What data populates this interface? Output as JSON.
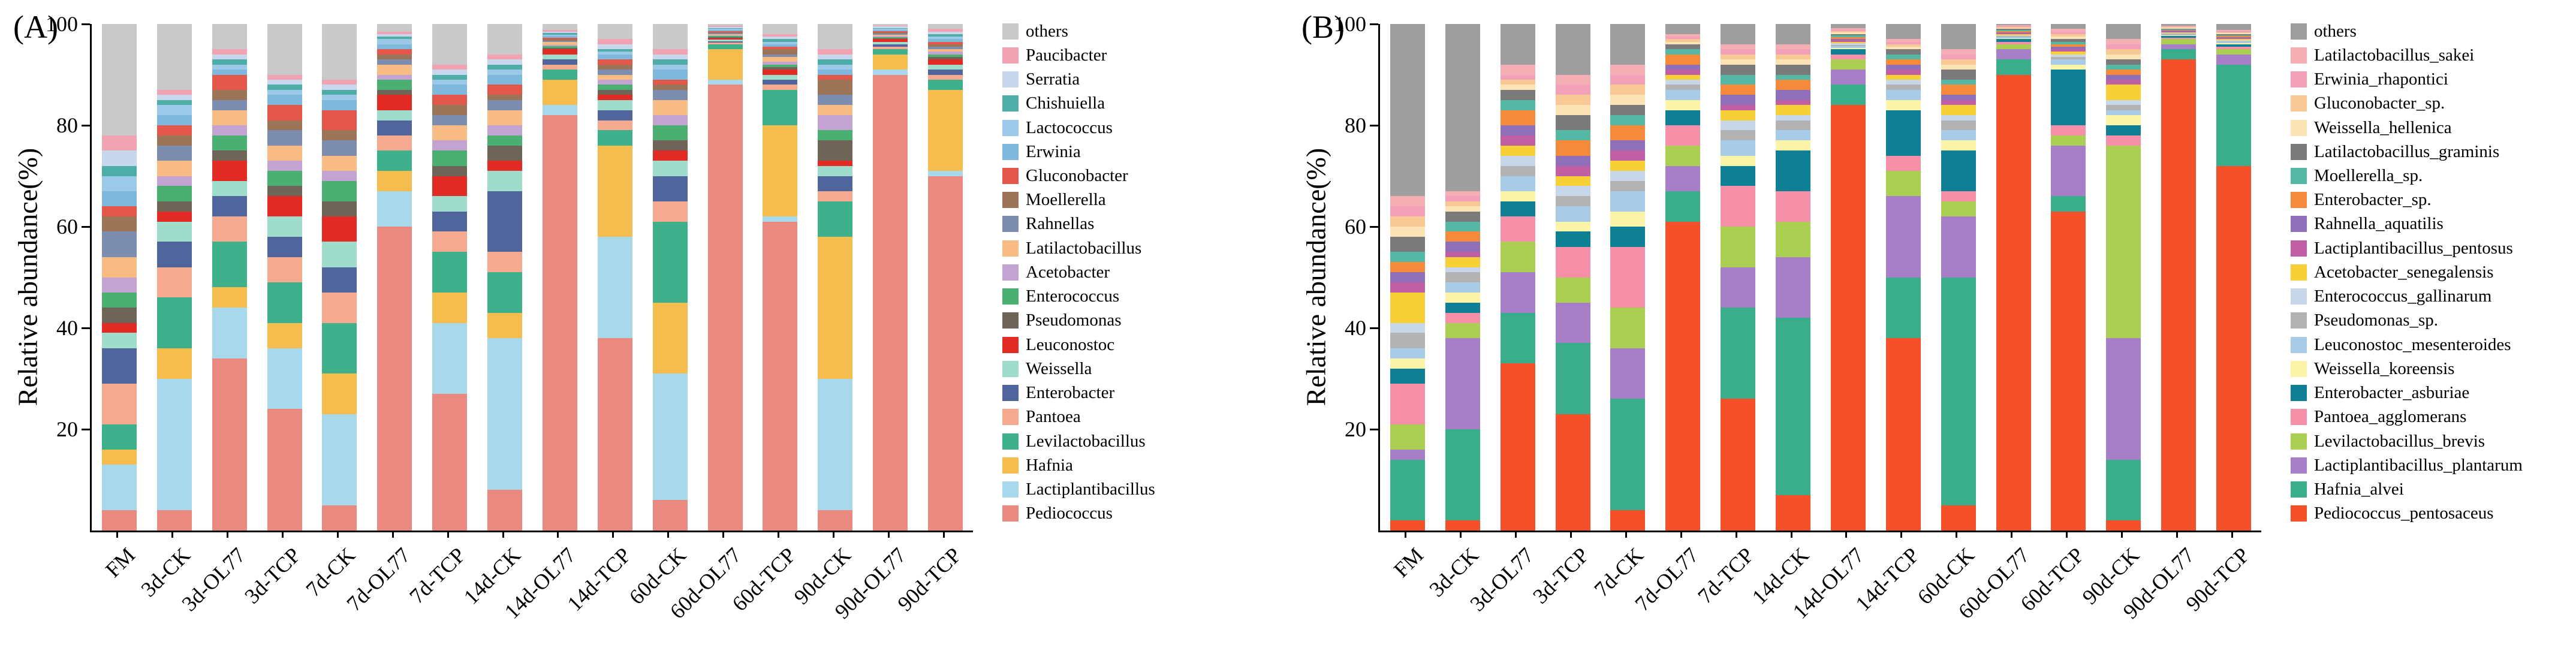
{
  "figure": {
    "panels": [
      {
        "label": "(A)"
      },
      {
        "label": "(B)"
      }
    ]
  },
  "chart_data": [
    {
      "type": "bar",
      "stacked": true,
      "panel_label": "(A)",
      "title": "",
      "xlabel": "",
      "ylabel": "Relative abundance(%)",
      "ylim": [
        0,
        100
      ],
      "yticks": [
        20,
        40,
        60,
        80,
        100
      ],
      "grid": false,
      "legend_position": "right",
      "legend_order": "top-to-bottom is reverse of series stacking order",
      "categories": [
        "FM",
        "3d-CK",
        "3d-OL77",
        "3d-TCP",
        "7d-CK",
        "7d-OL77",
        "7d-TCP",
        "14d-CK",
        "14d-OL77",
        "14d-TCP",
        "60d-CK",
        "60d-OL77",
        "60d-TCP",
        "90d-CK",
        "90d-OL77",
        "90d-TCP"
      ],
      "series": [
        {
          "name": "Pediococcus",
          "color": "#E98980",
          "values": [
            4,
            4,
            34,
            24,
            5,
            60,
            27,
            8,
            82,
            38,
            6,
            88,
            61,
            4,
            90,
            70
          ]
        },
        {
          "name": "Lactiplantibacillus",
          "color": "#A7D8EC",
          "values": [
            9,
            26,
            10,
            12,
            18,
            7,
            14,
            30,
            2,
            20,
            25,
            1,
            1,
            26,
            1,
            1
          ]
        },
        {
          "name": "Hafnia",
          "color": "#F5BD4E",
          "values": [
            3,
            6,
            4,
            5,
            8,
            4,
            6,
            5,
            5,
            18,
            14,
            6,
            18,
            28,
            3,
            16
          ]
        },
        {
          "name": "Levilactobacillus",
          "color": "#3FB08C",
          "values": [
            5,
            10,
            9,
            8,
            10,
            4,
            8,
            8,
            2,
            3,
            16,
            1,
            7,
            7,
            1,
            2
          ]
        },
        {
          "name": "Pantoea",
          "color": "#F5A98F",
          "values": [
            8,
            6,
            5,
            5,
            6,
            3,
            4,
            4,
            1,
            2,
            4,
            0.3,
            1,
            2,
            0.5,
            1
          ]
        },
        {
          "name": "Enterobacter",
          "color": "#4F659B",
          "values": [
            7,
            5,
            4,
            4,
            5,
            3,
            4,
            12,
            1,
            2,
            5,
            0.3,
            1,
            3,
            0.5,
            1
          ]
        },
        {
          "name": "Weissella",
          "color": "#9FDCCB",
          "values": [
            3,
            4,
            3,
            4,
            5,
            2,
            3,
            4,
            1,
            2,
            3,
            0.3,
            1,
            2,
            0.5,
            1
          ]
        },
        {
          "name": "Leuconostoc",
          "color": "#E22B24",
          "values": [
            2,
            2,
            4,
            4,
            5,
            3,
            4,
            2,
            1,
            1,
            2,
            0.3,
            1,
            1,
            0.5,
            1
          ]
        },
        {
          "name": "Pseudomonas",
          "color": "#6E6458",
          "values": [
            3,
            2,
            2,
            2,
            3,
            1,
            2,
            3,
            0.3,
            1,
            2,
            0.2,
            0.5,
            4,
            0.2,
            0.5
          ]
        },
        {
          "name": "Enterococcus",
          "color": "#4CAF72",
          "values": [
            3,
            3,
            3,
            3,
            4,
            2,
            3,
            2,
            0.3,
            1,
            3,
            0.2,
            0.5,
            2,
            0.2,
            0.5
          ]
        },
        {
          "name": "Acetobacter",
          "color": "#C2A3D1",
          "values": [
            3,
            2,
            2,
            2,
            2,
            1,
            2,
            2,
            0.3,
            1,
            2,
            0.2,
            0.5,
            3,
            0.2,
            0.5
          ]
        },
        {
          "name": "Latilactobacillus",
          "color": "#F7BB83",
          "values": [
            4,
            3,
            3,
            3,
            3,
            2,
            3,
            3,
            0.5,
            1,
            3,
            0.2,
            1,
            2,
            0.3,
            0.5
          ]
        },
        {
          "name": "Rahnellas",
          "color": "#7C8DB0",
          "values": [
            5,
            3,
            2,
            3,
            3,
            1,
            2,
            2,
            0.3,
            1,
            2,
            0.2,
            0.5,
            2,
            0.2,
            0.5
          ]
        },
        {
          "name": "Moellerella",
          "color": "#9C7558",
          "values": [
            3,
            2,
            2,
            2,
            2,
            1,
            2,
            1,
            0.3,
            1,
            1,
            0.2,
            1,
            3,
            0.2,
            0.5
          ]
        },
        {
          "name": "Gluconobacter",
          "color": "#E4574B",
          "values": [
            2,
            2,
            3,
            3,
            4,
            1,
            2,
            2,
            0.3,
            1,
            1,
            0.2,
            0.5,
            1,
            0.3,
            0.5
          ]
        },
        {
          "name": "Erwinia",
          "color": "#7FB8DD",
          "values": [
            3,
            2,
            1,
            2,
            2,
            1,
            2,
            2,
            0.3,
            1,
            2,
            0.2,
            0.5,
            1,
            0.2,
            0.5
          ]
        },
        {
          "name": "Lactococcus",
          "color": "#9DC9E8",
          "values": [
            3,
            2,
            1,
            1,
            1,
            1,
            1,
            1,
            0.3,
            0.5,
            1,
            0.2,
            0.5,
            1,
            0.2,
            0.5
          ]
        },
        {
          "name": "Chishuiella",
          "color": "#4FADA8",
          "values": [
            2,
            1,
            1,
            1,
            1,
            0.5,
            1,
            1,
            0.3,
            0.5,
            1,
            0.2,
            0.5,
            1,
            0.2,
            0.5
          ]
        },
        {
          "name": "Serratia",
          "color": "#C8D7EB",
          "values": [
            3,
            1,
            1,
            1,
            1,
            0.5,
            1,
            1,
            0.3,
            1,
            1,
            0.2,
            0.5,
            1,
            0.3,
            0.5
          ]
        },
        {
          "name": "Paucibacter",
          "color": "#F2A3B3",
          "values": [
            3,
            1,
            1,
            1,
            1,
            0.5,
            1,
            1,
            0.3,
            1,
            1,
            0.2,
            0.5,
            1,
            0.2,
            0.5
          ]
        },
        {
          "name": "others",
          "color": "#C9C9C9",
          "values": [
            22,
            13,
            5,
            10,
            11,
            1.5,
            8,
            6,
            1.2,
            3,
            5,
            0.4,
            2,
            5,
            0.3,
            1
          ]
        }
      ]
    },
    {
      "type": "bar",
      "stacked": true,
      "panel_label": "(B)",
      "title": "",
      "xlabel": "",
      "ylabel": "Relative abundance(%)",
      "ylim": [
        0,
        100
      ],
      "yticks": [
        20,
        40,
        60,
        80,
        100
      ],
      "grid": false,
      "legend_position": "right",
      "legend_order": "top-to-bottom is reverse of series stacking order",
      "categories": [
        "FM",
        "3d-CK",
        "3d-OL77",
        "3d-TCP",
        "7d-CK",
        "7d-OL77",
        "7d-TCP",
        "14d-CK",
        "14d-OL77",
        "14d-TCP",
        "60d-CK",
        "60d-OL77",
        "60d-TCP",
        "90d-CK",
        "90d-OL77",
        "90d-TCP"
      ],
      "series": [
        {
          "name": "Pediococcus_pentosaceus",
          "color": "#F4502A",
          "values": [
            2,
            2,
            33,
            23,
            4,
            61,
            26,
            7,
            84,
            38,
            5,
            90,
            63,
            2,
            93,
            72
          ]
        },
        {
          "name": "Hafnia_alvei",
          "color": "#3AAE8A",
          "values": [
            12,
            18,
            10,
            14,
            22,
            6,
            18,
            35,
            4,
            12,
            45,
            3,
            3,
            12,
            2,
            20
          ]
        },
        {
          "name": "Lactiplantibacillus_plantarum",
          "color": "#A77FC9",
          "values": [
            2,
            18,
            8,
            8,
            10,
            5,
            8,
            12,
            3,
            16,
            12,
            2,
            10,
            24,
            1,
            2
          ]
        },
        {
          "name": "Levilactobacillus_brevis",
          "color": "#AACF52",
          "values": [
            5,
            3,
            6,
            5,
            8,
            4,
            8,
            7,
            2,
            5,
            3,
            1,
            2,
            38,
            1,
            1
          ]
        },
        {
          "name": "Pantoea_agglomerans",
          "color": "#F590A8",
          "values": [
            8,
            2,
            5,
            6,
            12,
            4,
            8,
            6,
            1,
            3,
            2,
            0.5,
            2,
            2,
            0.3,
            0.5
          ]
        },
        {
          "name": "Enterobacter_asburiae",
          "color": "#0E7F94",
          "values": [
            3,
            2,
            3,
            3,
            4,
            3,
            4,
            8,
            1,
            9,
            8,
            0.5,
            11,
            2,
            0.3,
            0.5
          ]
        },
        {
          "name": "Weissella_koreensis",
          "color": "#FBF3A7",
          "values": [
            2,
            2,
            2,
            2,
            3,
            2,
            2,
            2,
            0.3,
            2,
            2,
            0.2,
            1,
            2,
            0.15,
            0.2
          ]
        },
        {
          "name": "Leuconostoc_mesenteroides",
          "color": "#A8CBE8",
          "values": [
            2,
            2,
            3,
            3,
            4,
            2,
            3,
            2,
            0.3,
            2,
            2,
            0.2,
            1,
            1,
            0.15,
            0.2
          ]
        },
        {
          "name": "Pseudomonas_sp.",
          "color": "#B3B3B3",
          "values": [
            3,
            2,
            2,
            2,
            2,
            1,
            2,
            2,
            0.3,
            1,
            2,
            0.2,
            0.5,
            1,
            0.15,
            0.2
          ]
        },
        {
          "name": "Enterococcus_gallinarum",
          "color": "#C7D6E8",
          "values": [
            2,
            1,
            2,
            2,
            2,
            1,
            2,
            1,
            0.3,
            1,
            1,
            0.2,
            0.5,
            1,
            0.15,
            0.2
          ]
        },
        {
          "name": "Acetobacter_senegalensis",
          "color": "#F7D038",
          "values": [
            6,
            2,
            2,
            2,
            2,
            1,
            2,
            2,
            0.3,
            1,
            2,
            0.2,
            0.5,
            3,
            0.15,
            0.2
          ]
        },
        {
          "name": "Lactiplantibacillus_pentosus",
          "color": "#C05FA4",
          "values": [
            2,
            1,
            2,
            2,
            2,
            1,
            1,
            1,
            0.3,
            1,
            1,
            0.2,
            0.5,
            1,
            0.15,
            0.2
          ]
        },
        {
          "name": "Rahnella_aquatilis",
          "color": "#8E6FB8",
          "values": [
            2,
            2,
            2,
            2,
            2,
            1,
            2,
            2,
            0.3,
            1,
            1,
            0.2,
            0.5,
            1,
            0.15,
            0.2
          ]
        },
        {
          "name": "Enterobacter_sp.",
          "color": "#F58A3C",
          "values": [
            2,
            2,
            3,
            3,
            3,
            2,
            2,
            2,
            0.3,
            1,
            2,
            0.2,
            0.5,
            1,
            0.15,
            0.2
          ]
        },
        {
          "name": "Moellerella_sp.",
          "color": "#54B8A4",
          "values": [
            2,
            2,
            2,
            2,
            2,
            1,
            2,
            1,
            0.3,
            1,
            1,
            0.2,
            0.5,
            1,
            0.15,
            0.2
          ]
        },
        {
          "name": "Latilactobacillus_graminis",
          "color": "#7A7A7A",
          "values": [
            3,
            2,
            2,
            3,
            2,
            1,
            2,
            2,
            0.3,
            1,
            2,
            0.2,
            0.5,
            1,
            0.15,
            0.2
          ]
        },
        {
          "name": "Weissella_hellenica",
          "color": "#FBE3B5",
          "values": [
            2,
            1,
            1,
            2,
            2,
            0.5,
            1,
            1,
            0.3,
            0.5,
            1,
            0.2,
            0.5,
            1,
            0.15,
            0.2
          ]
        },
        {
          "name": "Gluconobacter_sp.",
          "color": "#F8C895",
          "values": [
            2,
            1,
            1,
            2,
            2,
            0.5,
            1,
            1,
            0.3,
            0.5,
            1,
            0.2,
            0.5,
            1,
            0.15,
            0.2
          ]
        },
        {
          "name": "Erwinia_rhapontici",
          "color": "#F3A0B9",
          "values": [
            2,
            1,
            1,
            2,
            2,
            0.5,
            1,
            1,
            0.3,
            0.5,
            1,
            0.2,
            0.5,
            1,
            0.15,
            0.2
          ]
        },
        {
          "name": "Latilactobacillus_sakei",
          "color": "#F6AEB5",
          "values": [
            2,
            1,
            2,
            2,
            2,
            0.5,
            1,
            1,
            0.3,
            0.5,
            1,
            0.2,
            0.5,
            1,
            0.15,
            0.2
          ]
        },
        {
          "name": "others",
          "color": "#9E9E9E",
          "values": [
            34,
            33,
            8,
            10,
            8,
            2,
            4,
            4,
            0.8,
            3,
            5,
            0.2,
            1,
            3,
            0.3,
            1.2
          ]
        }
      ]
    }
  ]
}
